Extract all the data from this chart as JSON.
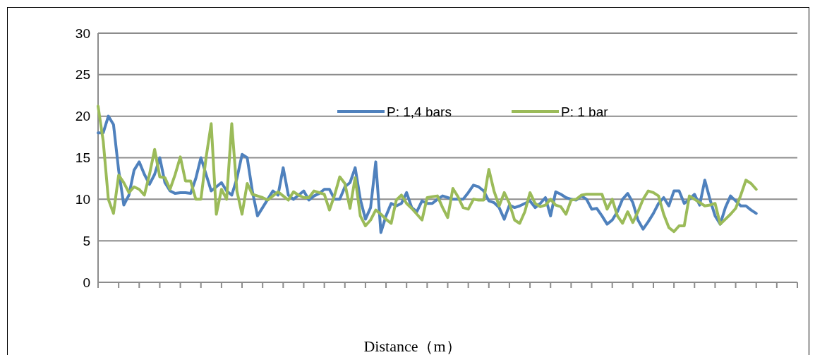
{
  "chart_data": {
    "type": "line",
    "xlabel": "Distance（m）",
    "categories": [
      null,
      null,
      null,
      null,
      null,
      null,
      null,
      null,
      null,
      null,
      null,
      null,
      null,
      null,
      null,
      null,
      null,
      null,
      null,
      null,
      null,
      null,
      null,
      null,
      null,
      null,
      null,
      null,
      null,
      null,
      null,
      null,
      null,
      null,
      null,
      null,
      null,
      null,
      null,
      null,
      null,
      null,
      null,
      null,
      null,
      null,
      null,
      null,
      null,
      null,
      null,
      null,
      null,
      null,
      null,
      null,
      null,
      null,
      null,
      null,
      null,
      null,
      null,
      null,
      null,
      null,
      null,
      null,
      null,
      null,
      null,
      null,
      null,
      null,
      null,
      null,
      null,
      null,
      null,
      null,
      null,
      null,
      null,
      null,
      null,
      null,
      null,
      null,
      null,
      null,
      null,
      null,
      null,
      null,
      null,
      null,
      null,
      null,
      null,
      null,
      null,
      null,
      null,
      null,
      null,
      null,
      null,
      null,
      null,
      null,
      null,
      null,
      null,
      null,
      null,
      null,
      null,
      null,
      null,
      null,
      null,
      null,
      null,
      null,
      null,
      null,
      null,
      null,
      null
    ],
    "ylim": [
      0,
      30
    ],
    "yticks": [
      0,
      5,
      10,
      15,
      20,
      25,
      30
    ],
    "grid": "y",
    "legend": "top",
    "marker": "none",
    "line_style": "solid",
    "series": [
      {
        "name": "P: 1,4 bars",
        "color": "#4f81bd",
        "values": [
          18,
          18,
          20,
          19,
          13.5,
          9.3,
          10.5,
          13.5,
          14.5,
          13,
          11.8,
          13,
          15,
          12,
          11,
          10.7,
          10.8,
          10.8,
          10.7,
          12.5,
          15,
          13,
          11,
          11.5,
          12,
          11,
          10.5,
          12.5,
          15.4,
          15,
          11,
          8,
          9,
          10,
          11,
          10.5,
          13.8,
          10.5,
          10,
          10.5,
          11,
          9.9,
          10.4,
          10.7,
          11.2,
          11.2,
          10,
          10,
          11.5,
          12,
          13.8,
          10,
          7.6,
          9,
          14.5,
          6,
          8,
          9.5,
          9.2,
          9.5,
          10.8,
          9,
          8.5,
          9.8,
          9.5,
          9.5,
          10,
          10.4,
          10.2,
          10,
          10,
          10,
          10.8,
          11.7,
          11.5,
          11,
          9.8,
          9.6,
          9,
          7.6,
          9.3,
          9,
          9.2,
          9.5,
          9.8,
          9,
          9.5,
          10.2,
          8,
          10.9,
          10.6,
          10.2,
          10,
          9.9,
          10.4,
          10,
          8.8,
          8.9,
          8,
          7,
          7.5,
          8.5,
          10,
          10.7,
          9.6,
          7.5,
          6.4,
          7.3,
          8.3,
          9.5,
          10.2,
          9.2,
          11,
          11,
          9.5,
          10,
          10.6,
          9.3,
          12.3,
          10,
          8,
          7,
          9,
          10.4,
          9.8,
          9.2,
          9.2,
          8.7,
          8.3
        ]
      },
      {
        "name": "P: 1 bar",
        "color": "#9bbb59",
        "values": [
          21.2,
          17,
          10,
          8.3,
          12.9,
          12,
          10.8,
          11.5,
          11.2,
          10.5,
          13,
          16,
          12.7,
          12.6,
          11.2,
          13,
          15.1,
          12.2,
          12.2,
          10,
          10,
          15,
          19.1,
          8.2,
          11.2,
          10,
          19.1,
          11,
          8.2,
          11.9,
          10.6,
          10.4,
          10.2,
          9.9,
          10.4,
          10.9,
          10.4,
          9.9,
          10.9,
          10.5,
          10.2,
          10.2,
          11,
          10.8,
          10.6,
          8.7,
          10.5,
          12.7,
          11.9,
          8.9,
          12.6,
          8,
          6.8,
          7.5,
          8.7,
          8.2,
          7.6,
          7.1,
          9.9,
          10.5,
          9.5,
          8.9,
          8.2,
          7.5,
          10.2,
          10.3,
          10.4,
          9,
          7.8,
          11.3,
          10.3,
          9,
          8.8,
          10,
          9.9,
          9.9,
          13.6,
          11,
          9.2,
          10.8,
          9.5,
          7.5,
          7.1,
          8.5,
          10.8,
          9.5,
          9.1,
          9.3,
          10,
          9.3,
          9.1,
          8.2,
          9.9,
          10,
          10.5,
          10.6,
          10.6,
          10.6,
          10.6,
          8.8,
          10,
          8,
          7.1,
          8.5,
          7.2,
          8.5,
          10,
          11,
          10.8,
          10.4,
          8.2,
          6.6,
          6.1,
          6.8,
          6.8,
          10.4,
          10,
          9.6,
          9.2,
          9.3,
          9.5,
          7,
          7.6,
          8.2,
          8.9,
          10.5,
          12.3,
          11.9,
          11.2
        ]
      }
    ]
  }
}
